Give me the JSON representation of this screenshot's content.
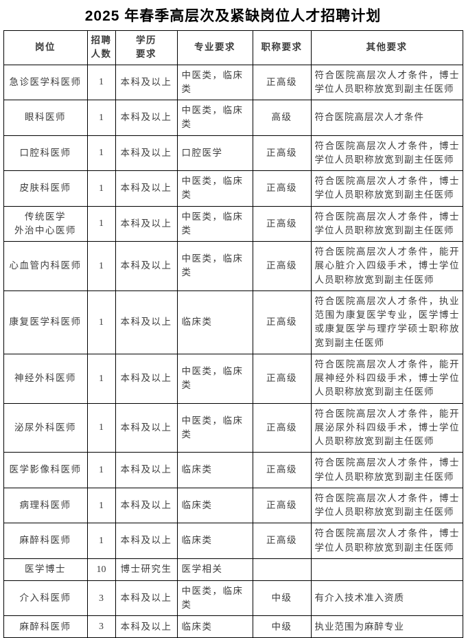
{
  "page": {
    "title": "2025 年春季高层次及紧缺岗位人才招聘计划"
  },
  "table": {
    "headers": {
      "position": "岗位",
      "count": "招聘\n人数",
      "education": "学历\n要求",
      "major": "专业要求",
      "title": "职称要求",
      "other": "其他要求"
    },
    "rows": [
      {
        "position": "急诊医学科医师",
        "count": "1",
        "education": "本科及以上",
        "major": "中医类，临床类",
        "title": "正高级",
        "other": "符合医院高层次人才条件，博士学位人员职称放宽到副主任医师"
      },
      {
        "position": "眼科医师",
        "count": "1",
        "education": "本科及以上",
        "major": "中医类，临床类",
        "title": "高级",
        "other": "符合医院高层次人才条件"
      },
      {
        "position": "口腔科医师",
        "count": "1",
        "education": "本科及以上",
        "major": "口腔医学",
        "title": "正高级",
        "other": "符合医院高层次人才条件，博士学位人员职称放宽到副主任医师"
      },
      {
        "position": "皮肤科医师",
        "count": "1",
        "education": "本科及以上",
        "major": "中医类，临床类",
        "title": "正高级",
        "other": "符合医院高层次人才条件，博士学位人员职称放宽到副主任医师"
      },
      {
        "position": "传统医学\n外治中心医师",
        "count": "1",
        "education": "本科及以上",
        "major": "中医类，临床类",
        "title": "正高级",
        "other": "符合医院高层次人才条件，博士学位人员职称放宽到副主任医师"
      },
      {
        "position": "心血管内科医师",
        "count": "1",
        "education": "本科及以上",
        "major": "中医类，临床类",
        "title": "正高级",
        "other": "符合医院高层次人才条件，能开展心脏介入四级手术，博士学位人员职称放宽到副主任医师"
      },
      {
        "position": "康复医学科医师",
        "count": "1",
        "education": "本科及以上",
        "major": "临床类",
        "title": "正高级",
        "other": "符合医院高层次人才条件，执业范围为康复医学专业，医学博士或康复医学与理疗学硕士职称放宽到副主任医师"
      },
      {
        "position": "神经外科医师",
        "count": "1",
        "education": "本科及以上",
        "major": "中医类，临床类",
        "title": "正高级",
        "other": "符合医院高层次人才条件，能开展神经外科四级手术，博士学位人员职称放宽到副主任医师"
      },
      {
        "position": "泌尿外科医师",
        "count": "1",
        "education": "本科及以上",
        "major": "中医类，临床类",
        "title": "正高级",
        "other": "符合医院高层次人才条件，能开展泌尿外科四级手术，博士学位人员职称放宽到副主任医师"
      },
      {
        "position": "医学影像科医师",
        "count": "1",
        "education": "本科及以上",
        "major": "临床类",
        "title": "正高级",
        "other": "符合医院高层次人才条件，博士学位人员职称放宽到副主任医师"
      },
      {
        "position": "病理科医师",
        "count": "1",
        "education": "本科及以上",
        "major": "临床类",
        "title": "正高级",
        "other": "符合医院高层次人才条件，博士学位人员职称放宽到副主任医师"
      },
      {
        "position": "麻醉科医师",
        "count": "1",
        "education": "本科及以上",
        "major": "临床类",
        "title": "正高级",
        "other": "符合医院高层次人才条件，博士学位人员职称放宽到副主任医师"
      },
      {
        "position": "医学博士",
        "count": "10",
        "education": "博士研究生",
        "major": "医学相关",
        "title": "",
        "other": ""
      },
      {
        "position": "介入科医师",
        "count": "3",
        "education": "本科及以上",
        "major": "中医类，临床类",
        "title": "中级",
        "other": "有介入技术准入资质"
      },
      {
        "position": "麻醉科医师",
        "count": "3",
        "education": "本科及以上",
        "major": "临床类",
        "title": "中级",
        "other": "执业范围为麻醉专业"
      }
    ]
  }
}
